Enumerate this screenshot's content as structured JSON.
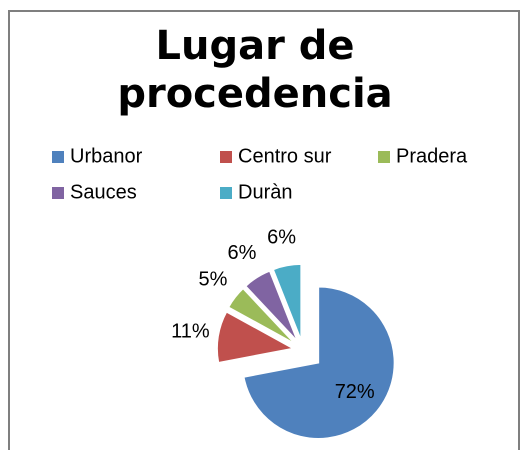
{
  "chart_data": {
    "type": "pie",
    "title": "Lugar de procedencia",
    "categories": [
      "Urbanor",
      "Centro sur",
      "Pradera",
      "Sauces",
      "Duràn"
    ],
    "values": [
      72,
      11,
      5,
      6,
      6
    ],
    "value_labels": [
      "72%",
      "11%",
      "5%",
      "6%",
      "6%"
    ],
    "colors": [
      "#4f81bd",
      "#c0504d",
      "#9bbb59",
      "#8064a2",
      "#4bacc6"
    ],
    "legend": "top"
  }
}
